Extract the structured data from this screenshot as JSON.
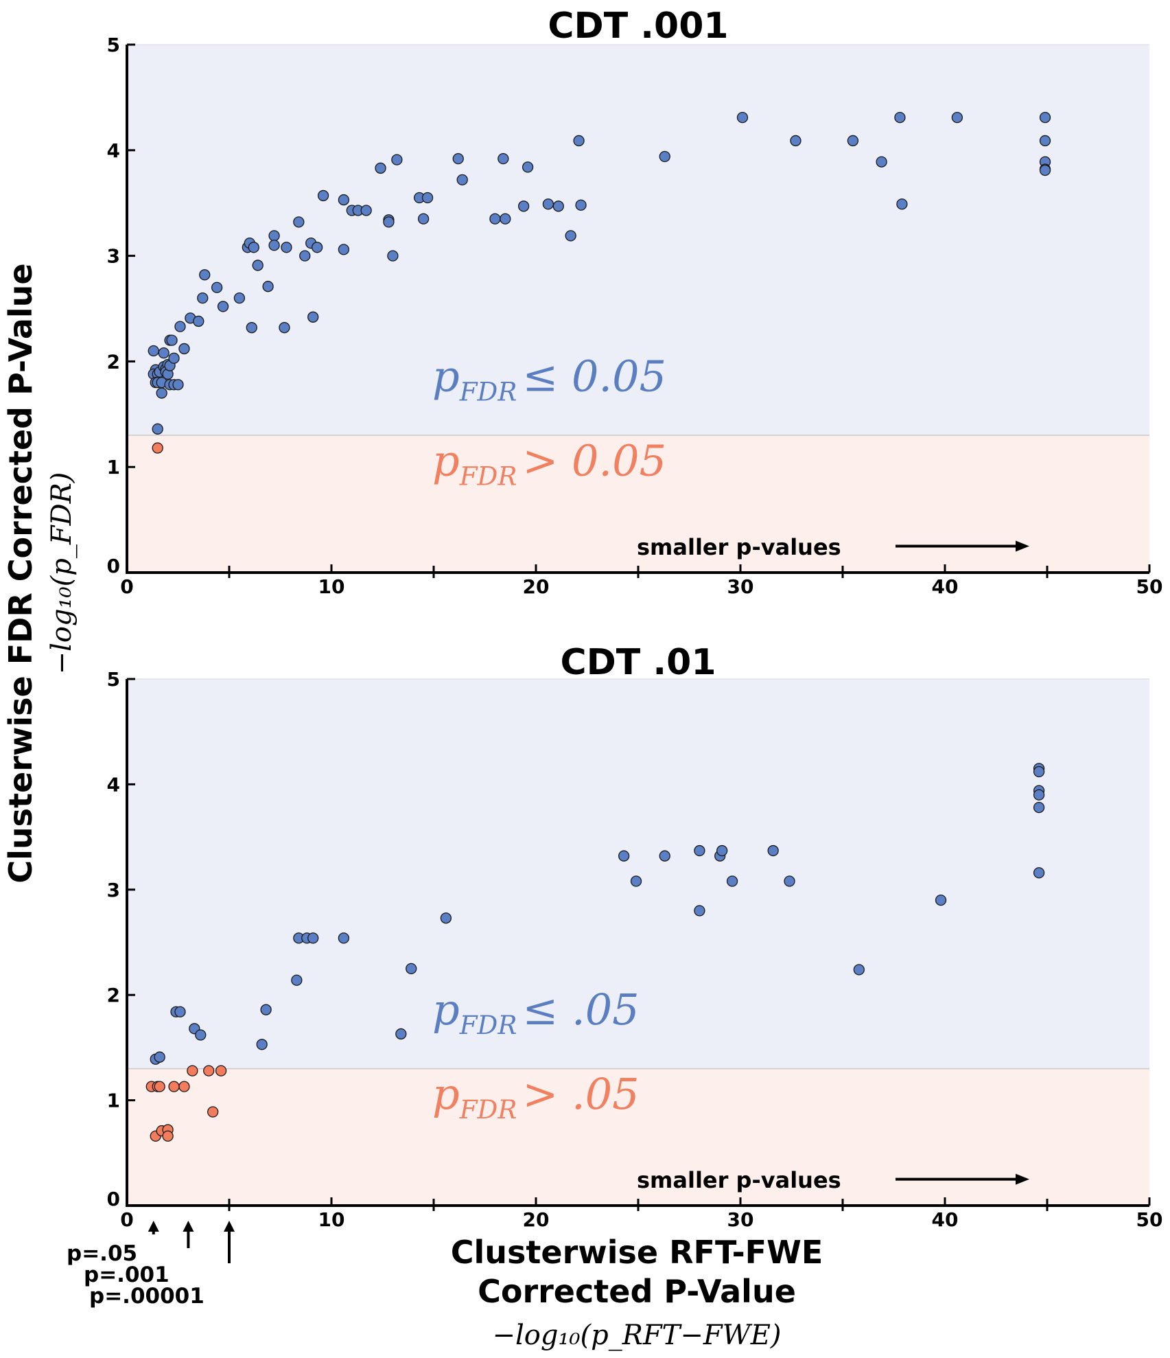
{
  "y_axis_label": "Clusterwise FDR Corrected P-Value",
  "y_axis_math": "−log₁₀(p_FDR)",
  "x_axis_label_line1": "Clusterwise RFT-FWE",
  "x_axis_label_line2": "Corrected P-Value",
  "x_axis_math": "−log₁₀(p_RFT−FWE)",
  "p_markers": [
    {
      "label": "p=.05",
      "x": 1.3
    },
    {
      "label": "p=.001",
      "x": 3.0
    },
    {
      "label": "p=.00001",
      "x": 5.0
    }
  ],
  "colors": {
    "significant": "#5b7fc4",
    "nonsignificant": "#f27c5c",
    "sig_region": "#eceff8",
    "nonsig_region": "#fdefec"
  },
  "chart_data": [
    {
      "type": "scatter",
      "title": "CDT .001",
      "xlim": [
        0,
        50
      ],
      "ylim": [
        0,
        5
      ],
      "xticks": [
        0,
        10,
        20,
        30,
        40,
        50
      ],
      "yticks": [
        0,
        1,
        2,
        3,
        4,
        5
      ],
      "threshold": 1.3,
      "sig_text": "p_FDR ≤ 0.05",
      "nonsig_text": "p_FDR > 0.05",
      "annotation": "smaller p-values",
      "points": [
        [
          1.3,
          2.1
        ],
        [
          1.4,
          1.92
        ],
        [
          1.3,
          1.88
        ],
        [
          1.5,
          1.88
        ],
        [
          1.6,
          1.9
        ],
        [
          1.4,
          1.8
        ],
        [
          1.5,
          1.8
        ],
        [
          1.7,
          1.8
        ],
        [
          1.7,
          1.7
        ],
        [
          1.8,
          2.08
        ],
        [
          1.8,
          1.95
        ],
        [
          1.9,
          1.93
        ],
        [
          2.0,
          1.97
        ],
        [
          1.9,
          1.9
        ],
        [
          2.0,
          1.88
        ],
        [
          2.1,
          1.96
        ],
        [
          2.1,
          2.2
        ],
        [
          2.2,
          2.2
        ],
        [
          2.1,
          1.78
        ],
        [
          2.3,
          1.78
        ],
        [
          2.3,
          2.03
        ],
        [
          2.5,
          1.78
        ],
        [
          2.6,
          2.33
        ],
        [
          2.8,
          2.12
        ],
        [
          3.1,
          2.41
        ],
        [
          3.5,
          2.38
        ],
        [
          3.7,
          2.6
        ],
        [
          3.8,
          2.82
        ],
        [
          4.4,
          2.7
        ],
        [
          4.7,
          2.52
        ],
        [
          5.5,
          2.6
        ],
        [
          5.9,
          3.08
        ],
        [
          6.0,
          3.12
        ],
        [
          6.2,
          3.08
        ],
        [
          6.1,
          2.32
        ],
        [
          6.4,
          2.91
        ],
        [
          6.9,
          2.71
        ],
        [
          7.2,
          3.19
        ],
        [
          7.2,
          3.1
        ],
        [
          7.7,
          2.32
        ],
        [
          7.8,
          3.08
        ],
        [
          8.4,
          3.32
        ],
        [
          8.7,
          3.0
        ],
        [
          9.0,
          3.12
        ],
        [
          9.1,
          2.42
        ],
        [
          9.3,
          3.08
        ],
        [
          9.6,
          3.57
        ],
        [
          10.6,
          3.53
        ],
        [
          10.6,
          3.06
        ],
        [
          11.0,
          3.43
        ],
        [
          11.3,
          3.43
        ],
        [
          11.7,
          3.43
        ],
        [
          12.4,
          3.83
        ],
        [
          12.8,
          3.34
        ],
        [
          12.8,
          3.32
        ],
        [
          13.0,
          3.0
        ],
        [
          13.2,
          3.91
        ],
        [
          14.3,
          3.55
        ],
        [
          14.5,
          3.35
        ],
        [
          14.7,
          3.55
        ],
        [
          16.2,
          3.92
        ],
        [
          16.4,
          3.72
        ],
        [
          18.0,
          3.35
        ],
        [
          18.5,
          3.35
        ],
        [
          18.4,
          3.92
        ],
        [
          19.4,
          3.47
        ],
        [
          19.6,
          3.84
        ],
        [
          20.6,
          3.49
        ],
        [
          21.1,
          3.47
        ],
        [
          21.7,
          3.19
        ],
        [
          22.1,
          4.09
        ],
        [
          22.2,
          3.48
        ],
        [
          26.3,
          3.94
        ],
        [
          30.1,
          4.31
        ],
        [
          32.7,
          4.09
        ],
        [
          35.5,
          4.09
        ],
        [
          36.9,
          3.89
        ],
        [
          37.8,
          4.31
        ],
        [
          37.9,
          3.49
        ],
        [
          40.6,
          4.31
        ],
        [
          44.9,
          4.31
        ],
        [
          44.9,
          4.09
        ],
        [
          44.9,
          3.89
        ],
        [
          44.9,
          3.82
        ],
        [
          44.9,
          3.81
        ],
        [
          1.5,
          1.36
        ]
      ],
      "nonsig_points": [
        [
          1.5,
          1.18
        ]
      ]
    },
    {
      "type": "scatter",
      "title": "CDT .01",
      "xlim": [
        0,
        50
      ],
      "ylim": [
        0,
        5
      ],
      "xticks": [
        0,
        10,
        20,
        30,
        40,
        50
      ],
      "yticks": [
        0,
        1,
        2,
        3,
        4,
        5
      ],
      "threshold": 1.3,
      "sig_text": "p_FDR ≤ .05",
      "nonsig_text": "p_FDR > .05",
      "annotation": "smaller p-values",
      "points": [
        [
          1.4,
          1.39
        ],
        [
          1.6,
          1.41
        ],
        [
          2.4,
          1.84
        ],
        [
          2.6,
          1.84
        ],
        [
          3.3,
          1.68
        ],
        [
          3.6,
          1.62
        ],
        [
          6.6,
          1.53
        ],
        [
          6.8,
          1.86
        ],
        [
          8.3,
          2.14
        ],
        [
          8.4,
          2.54
        ],
        [
          8.8,
          2.54
        ],
        [
          9.1,
          2.54
        ],
        [
          10.6,
          2.54
        ],
        [
          13.4,
          1.63
        ],
        [
          13.9,
          2.25
        ],
        [
          15.6,
          2.73
        ],
        [
          24.3,
          3.32
        ],
        [
          24.9,
          3.08
        ],
        [
          26.3,
          3.32
        ],
        [
          28.0,
          3.37
        ],
        [
          28.0,
          2.8
        ],
        [
          29.0,
          3.32
        ],
        [
          29.1,
          3.37
        ],
        [
          29.6,
          3.08
        ],
        [
          31.6,
          3.37
        ],
        [
          32.4,
          3.08
        ],
        [
          35.8,
          2.24
        ],
        [
          39.8,
          2.9
        ],
        [
          44.6,
          4.15
        ],
        [
          44.6,
          4.12
        ],
        [
          44.6,
          3.94
        ],
        [
          44.6,
          3.9
        ],
        [
          44.6,
          3.78
        ],
        [
          44.6,
          3.16
        ]
      ],
      "nonsig_points": [
        [
          1.2,
          1.13
        ],
        [
          1.5,
          1.13
        ],
        [
          1.6,
          1.13
        ],
        [
          2.3,
          1.13
        ],
        [
          2.8,
          1.13
        ],
        [
          3.2,
          1.28
        ],
        [
          4.0,
          1.28
        ],
        [
          4.6,
          1.28
        ],
        [
          4.2,
          0.89
        ],
        [
          1.4,
          0.66
        ],
        [
          1.7,
          0.71
        ],
        [
          2.0,
          0.72
        ],
        [
          2.0,
          0.66
        ]
      ]
    }
  ]
}
